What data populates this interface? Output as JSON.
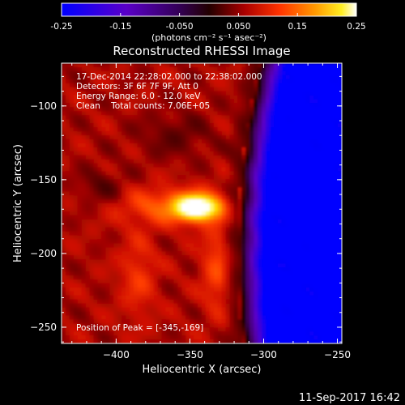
{
  "colorbar": {
    "ticks": [
      "-0.25",
      "-0.15",
      "-0.050",
      "0.050",
      "0.15",
      "0.25"
    ],
    "tick_values": [
      -0.25,
      -0.15,
      -0.05,
      0.05,
      0.15,
      0.25
    ],
    "range": [
      -0.25,
      0.25
    ],
    "units_label": "(photons cm⁻² s⁻¹ asec⁻²)",
    "colors": [
      "#0000ff",
      "#6b00a0",
      "#1a0033",
      "#990000",
      "#ff2200",
      "#ff8800",
      "#ffee00",
      "#ffffff"
    ]
  },
  "chart_data": {
    "type": "heatmap",
    "title": "Reconstructed RHESSI Image",
    "info_lines": [
      "17-Dec-2014 22:28:02.000 to 22:38:02.000",
      "Detectors: 3F 6F 7F 9F, Att 0",
      "Energy Range: 6.0 - 12.0 keV",
      "Clean    Total counts: 7.06E+05"
    ],
    "peak_label": "Position of Peak = [-345,-169]",
    "peak": [
      -345,
      -169
    ],
    "xlabel": "Heliocentric X (arcsec)",
    "ylabel": "Heliocentric Y (arcsec)",
    "xlim": [
      -437,
      -247
    ],
    "ylim": [
      -261,
      -71
    ],
    "x_ticks": [
      -400,
      -350,
      -300,
      -250
    ],
    "y_ticks": [
      -250,
      -200,
      -150,
      -100
    ],
    "x_tick_labels": [
      "−400",
      "−350",
      "−300",
      "−250"
    ],
    "y_tick_labels": [
      "−250",
      "−200",
      "−150",
      "−100"
    ],
    "colorscale": "RHESSI linear, -0.25 to 0.25"
  },
  "footer": {
    "timestamp": "11-Sep-2017 16:42"
  }
}
